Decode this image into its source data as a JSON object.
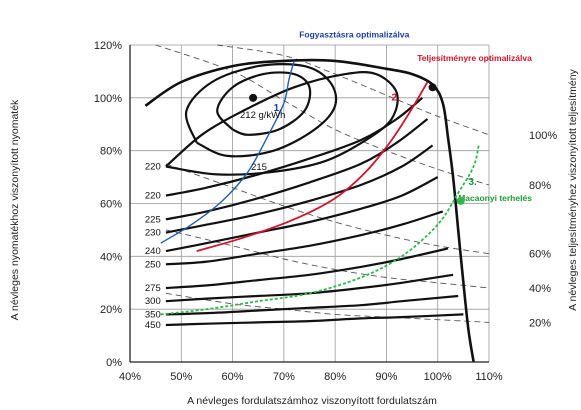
{
  "chart_data": {
    "type": "line",
    "xlabel": "A névleges fordulatszámhoz viszonyított fordulatszám",
    "ylabel": "A névleges nyomatékhoz viszonyított nyomaték",
    "y2label": "A névleges teljesítményhez viszonyított teljesítmény",
    "xlim": [
      40,
      110
    ],
    "ylim": [
      0,
      120
    ],
    "x_ticks": [
      "40%",
      "50%",
      "60%",
      "70%",
      "80%",
      "90%",
      "100%",
      "110%"
    ],
    "y_ticks": [
      "0%",
      "20%",
      "40%",
      "60%",
      "80%",
      "100%",
      "120%"
    ],
    "y2_ticks": [
      "20%",
      "40%",
      "60%",
      "80%",
      "100%"
    ],
    "center_label": "212 g/kWh",
    "center_point": {
      "x": 64,
      "y": 100
    },
    "full_load_curve": [
      [
        43,
        97
      ],
      [
        50,
        106
      ],
      [
        60,
        112
      ],
      [
        70,
        114
      ],
      [
        80,
        114
      ],
      [
        90,
        111
      ],
      [
        95,
        109
      ],
      [
        99,
        105
      ],
      [
        101,
        98
      ],
      [
        102,
        85
      ],
      [
        103,
        70
      ],
      [
        104,
        50
      ],
      [
        105,
        30
      ],
      [
        106,
        12
      ],
      [
        107,
        0
      ]
    ],
    "island_contours": [
      {
        "label": "212 g/kWh",
        "points": [
          [
            60,
            88
          ],
          [
            57,
            95
          ],
          [
            60,
            104
          ],
          [
            66,
            109
          ],
          [
            72,
            109
          ],
          [
            75,
            104
          ],
          [
            74,
            95
          ],
          [
            69,
            88
          ],
          [
            63,
            86
          ],
          [
            60,
            88
          ]
        ]
      },
      {
        "label": "215",
        "points": [
          [
            53,
            83
          ],
          [
            51,
            95
          ],
          [
            56,
            106
          ],
          [
            65,
            112
          ],
          [
            74,
            112
          ],
          [
            79,
            106
          ],
          [
            80,
            97
          ],
          [
            76,
            88
          ],
          [
            68,
            80
          ],
          [
            59,
            78
          ],
          [
            53,
            83
          ]
        ]
      }
    ],
    "contours": [
      {
        "label": "220",
        "points": [
          [
            47,
            74
          ],
          [
            54,
            86
          ],
          [
            62,
            95
          ],
          [
            72,
            104
          ],
          [
            82,
            109
          ],
          [
            88,
            109
          ],
          [
            92,
            102
          ],
          [
            91,
            92
          ],
          [
            86,
            84
          ],
          [
            78,
            76
          ],
          [
            68,
            72
          ],
          [
            57,
            71
          ],
          [
            47,
            74
          ]
        ]
      },
      {
        "label": "220",
        "points": [
          [
            47,
            63
          ],
          [
            55,
            66
          ],
          [
            65,
            71
          ],
          [
            75,
            77
          ],
          [
            85,
            84
          ],
          [
            92,
            92
          ],
          [
            97,
            100
          ]
        ]
      },
      {
        "label": "225",
        "points": [
          [
            47,
            54
          ],
          [
            55,
            57
          ],
          [
            65,
            62
          ],
          [
            75,
            68
          ],
          [
            85,
            75
          ],
          [
            92,
            83
          ],
          [
            98,
            92
          ]
        ]
      },
      {
        "label": "230",
        "points": [
          [
            47,
            49
          ],
          [
            55,
            52
          ],
          [
            65,
            56
          ],
          [
            75,
            61
          ],
          [
            85,
            67
          ],
          [
            93,
            74
          ],
          [
            99,
            82
          ]
        ]
      },
      {
        "label": "240",
        "points": [
          [
            47,
            42
          ],
          [
            55,
            45
          ],
          [
            65,
            49
          ],
          [
            75,
            53
          ],
          [
            85,
            58
          ],
          [
            93,
            63
          ],
          [
            100,
            70
          ]
        ]
      },
      {
        "label": "250",
        "points": [
          [
            47,
            37
          ],
          [
            55,
            38
          ],
          [
            65,
            41
          ],
          [
            75,
            44
          ],
          [
            85,
            48
          ],
          [
            93,
            52
          ],
          [
            101,
            57
          ]
        ]
      },
      {
        "label": "275",
        "points": [
          [
            47,
            28
          ],
          [
            55,
            29
          ],
          [
            65,
            31
          ],
          [
            75,
            33
          ],
          [
            85,
            36
          ],
          [
            93,
            39
          ],
          [
            102,
            43
          ]
        ]
      },
      {
        "label": "300",
        "points": [
          [
            47,
            23
          ],
          [
            55,
            24
          ],
          [
            65,
            25
          ],
          [
            75,
            26
          ],
          [
            85,
            28
          ],
          [
            93,
            30
          ],
          [
            103,
            33
          ]
        ]
      },
      {
        "label": "350",
        "points": [
          [
            47,
            18
          ],
          [
            55,
            18.5
          ],
          [
            65,
            19.5
          ],
          [
            75,
            20.5
          ],
          [
            85,
            21.5
          ],
          [
            93,
            23
          ],
          [
            104,
            25
          ]
        ]
      },
      {
        "label": "450",
        "points": [
          [
            47,
            14
          ],
          [
            55,
            14.5
          ],
          [
            65,
            15
          ],
          [
            75,
            15.5
          ],
          [
            85,
            16.5
          ],
          [
            93,
            17
          ],
          [
            105,
            18
          ]
        ]
      }
    ],
    "power_lines": [
      {
        "label": "100%",
        "points": [
          [
            57,
            120
          ],
          [
            70,
            116
          ],
          [
            80,
            109
          ],
          [
            90,
            101
          ],
          [
            100,
            93
          ],
          [
            110,
            86
          ]
        ]
      },
      {
        "label": "80%",
        "points": [
          [
            45,
            120
          ],
          [
            60,
            110
          ],
          [
            70,
            99
          ],
          [
            80,
            88
          ],
          [
            90,
            80
          ],
          [
            100,
            73
          ],
          [
            110,
            67
          ]
        ]
      },
      {
        "label": "60%",
        "points": [
          [
            47,
            75
          ],
          [
            60,
            66
          ],
          [
            70,
            59
          ],
          [
            80,
            53
          ],
          [
            90,
            48
          ],
          [
            100,
            44
          ],
          [
            110,
            41
          ]
        ]
      },
      {
        "label": "40%",
        "points": [
          [
            47,
            50
          ],
          [
            60,
            44
          ],
          [
            70,
            39
          ],
          [
            80,
            35
          ],
          [
            90,
            32
          ],
          [
            100,
            30
          ],
          [
            110,
            28
          ]
        ]
      },
      {
        "label": "20%",
        "points": [
          [
            47,
            26
          ],
          [
            60,
            22
          ],
          [
            70,
            20
          ],
          [
            80,
            18
          ],
          [
            90,
            17
          ],
          [
            100,
            16
          ],
          [
            110,
            15
          ]
        ]
      }
    ],
    "operating_lines": [
      {
        "name": "Fogyasztásra optimalizálva",
        "number": "1.",
        "color": "#1f5fb0",
        "label_color": "#1a3fa0",
        "points": [
          [
            46,
            45
          ],
          [
            52,
            52
          ],
          [
            58,
            61
          ],
          [
            63,
            72
          ],
          [
            67,
            86
          ],
          [
            70,
            98
          ],
          [
            71,
            107
          ],
          [
            72,
            114
          ]
        ]
      },
      {
        "name": "Teljesítményre optimalizálva",
        "number": "2.",
        "color": "#d0142c",
        "label_color": "#d0142c",
        "points": [
          [
            53,
            42
          ],
          [
            62,
            47
          ],
          [
            72,
            54
          ],
          [
            80,
            62
          ],
          [
            86,
            72
          ],
          [
            91,
            84
          ],
          [
            95,
            96
          ],
          [
            98,
            106
          ]
        ]
      },
      {
        "name": "Macaonyi terhelés",
        "number": "3.",
        "color": "#2fb84a",
        "label_color": "#1c9c35",
        "points": [
          [
            46,
            18
          ],
          [
            55,
            20
          ],
          [
            65,
            23
          ],
          [
            75,
            26
          ],
          [
            85,
            32
          ],
          [
            93,
            40
          ],
          [
            100,
            52
          ],
          [
            104,
            64
          ],
          [
            107,
            74
          ],
          [
            108,
            82
          ]
        ]
      }
    ],
    "marker_points": [
      {
        "x": 64,
        "y": 100,
        "color": "#111111"
      },
      {
        "x": 99,
        "y": 104,
        "color": "#111111"
      },
      {
        "x": 104.5,
        "y": 61,
        "color": "#2fb84a"
      }
    ]
  }
}
